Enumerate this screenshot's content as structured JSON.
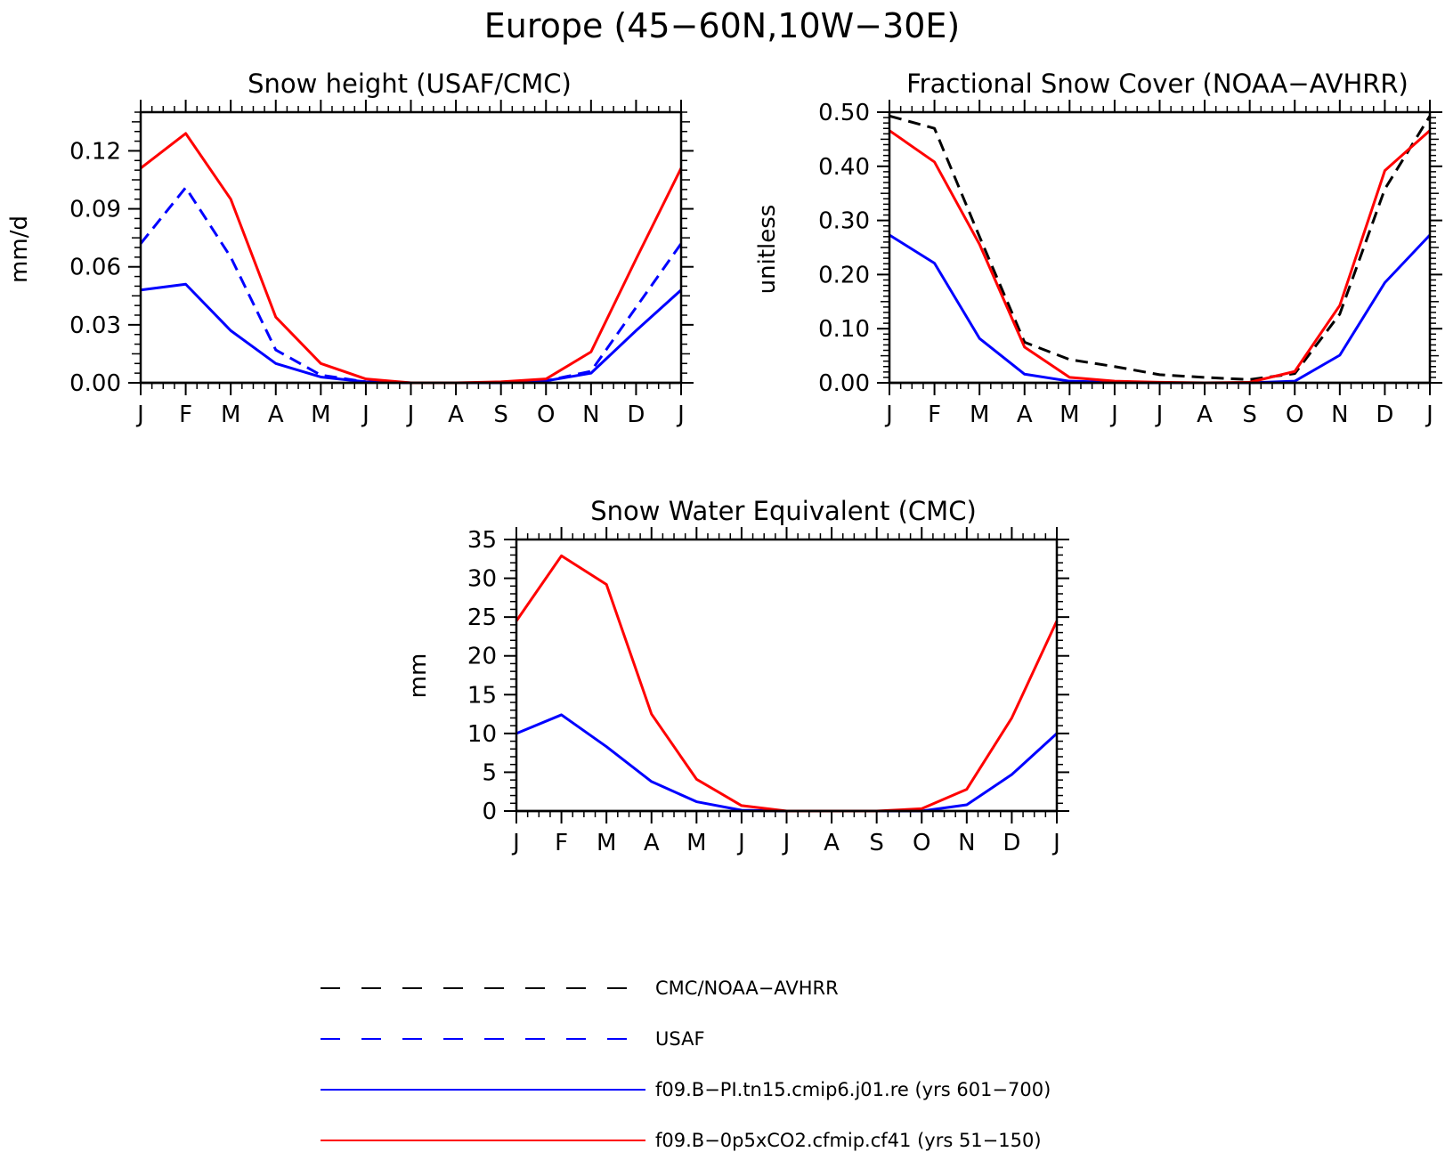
{
  "figure": {
    "title": "Europe (45−60N,10W−30E)"
  },
  "series_styles": {
    "obs_cmc": {
      "color": "#000000",
      "dash": "dashed"
    },
    "obs_usaf": {
      "color": "#0000ff",
      "dash": "dashed"
    },
    "pi": {
      "color": "#0000ff",
      "dash": "solid"
    },
    "co2": {
      "color": "#ff0000",
      "dash": "solid"
    }
  },
  "legend": {
    "items": [
      {
        "key": "obs_cmc",
        "label": "CMC/NOAA−AVHRR"
      },
      {
        "key": "obs_usaf",
        "label": "USAF"
      },
      {
        "key": "pi",
        "label": "f09.B−PI.tn15.cmip6.j01.re (yrs 601−700)"
      },
      {
        "key": "co2",
        "label": "f09.B−0p5xCO2.cfmip.cf41 (yrs 51−150)"
      }
    ]
  },
  "chart_data": [
    {
      "type": "line",
      "title": "Snow height (USAF/CMC)",
      "xlabel": "",
      "ylabel": "mm/d",
      "categories": [
        "J",
        "F",
        "M",
        "A",
        "M",
        "J",
        "J",
        "A",
        "S",
        "O",
        "N",
        "D",
        "J"
      ],
      "ylim": [
        0,
        0.14
      ],
      "yticks": [
        0.0,
        0.03,
        0.06,
        0.09,
        0.12
      ],
      "ytick_labels": [
        "0.00",
        "0.03",
        "0.06",
        "0.09",
        "0.12"
      ],
      "grid": false,
      "series": [
        {
          "key": "obs_usaf",
          "values": [
            0.072,
            0.101,
            0.065,
            0.017,
            0.004,
            0.0005,
            0.0,
            0.0,
            0.0,
            0.001,
            0.006,
            0.039,
            0.072
          ]
        },
        {
          "key": "pi",
          "values": [
            0.048,
            0.051,
            0.027,
            0.01,
            0.003,
            0.0005,
            0.0,
            0.0,
            0.0,
            0.001,
            0.005,
            0.027,
            0.048
          ]
        },
        {
          "key": "co2",
          "values": [
            0.111,
            0.129,
            0.095,
            0.034,
            0.01,
            0.002,
            0.0,
            0.0,
            0.0005,
            0.002,
            0.016,
            0.064,
            0.111
          ]
        }
      ]
    },
    {
      "type": "line",
      "title": "Fractional Snow Cover (NOAA−AVHRR)",
      "xlabel": "",
      "ylabel": "unitless",
      "categories": [
        "J",
        "F",
        "M",
        "A",
        "M",
        "J",
        "J",
        "A",
        "S",
        "O",
        "N",
        "D",
        "J"
      ],
      "ylim": [
        0,
        0.5
      ],
      "yticks": [
        0.0,
        0.1,
        0.2,
        0.3,
        0.4,
        0.5
      ],
      "ytick_labels": [
        "0.00",
        "0.10",
        "0.20",
        "0.30",
        "0.40",
        "0.50"
      ],
      "grid": false,
      "series": [
        {
          "key": "obs_cmc",
          "values": [
            0.493,
            0.47,
            0.27,
            0.075,
            0.043,
            0.03,
            0.015,
            0.01,
            0.006,
            0.017,
            0.127,
            0.358,
            0.493
          ]
        },
        {
          "key": "pi",
          "values": [
            0.273,
            0.221,
            0.082,
            0.016,
            0.003,
            0.001,
            0.0,
            0.0,
            0.0,
            0.003,
            0.051,
            0.185,
            0.273
          ]
        },
        {
          "key": "co2",
          "values": [
            0.466,
            0.408,
            0.256,
            0.066,
            0.01,
            0.003,
            0.001,
            0.0,
            0.001,
            0.021,
            0.143,
            0.392,
            0.466
          ]
        }
      ]
    },
    {
      "type": "line",
      "title": "Snow Water Equivalent (CMC)",
      "xlabel": "",
      "ylabel": "mm",
      "categories": [
        "J",
        "F",
        "M",
        "A",
        "M",
        "J",
        "J",
        "A",
        "S",
        "O",
        "N",
        "D",
        "J"
      ],
      "ylim": [
        0,
        35
      ],
      "yticks": [
        0,
        5,
        10,
        15,
        20,
        25,
        30,
        35
      ],
      "ytick_labels": [
        "0",
        "5",
        "10",
        "15",
        "20",
        "25",
        "30",
        "35"
      ],
      "grid": false,
      "series": [
        {
          "key": "pi",
          "values": [
            10.0,
            12.4,
            8.3,
            3.8,
            1.2,
            0.1,
            0.0,
            0.0,
            0.0,
            0.0,
            0.8,
            4.7,
            10.0
          ]
        },
        {
          "key": "co2",
          "values": [
            24.5,
            32.9,
            29.2,
            12.5,
            4.1,
            0.7,
            0.0,
            0.0,
            0.0,
            0.3,
            2.8,
            12.0,
            24.5
          ]
        }
      ]
    }
  ]
}
